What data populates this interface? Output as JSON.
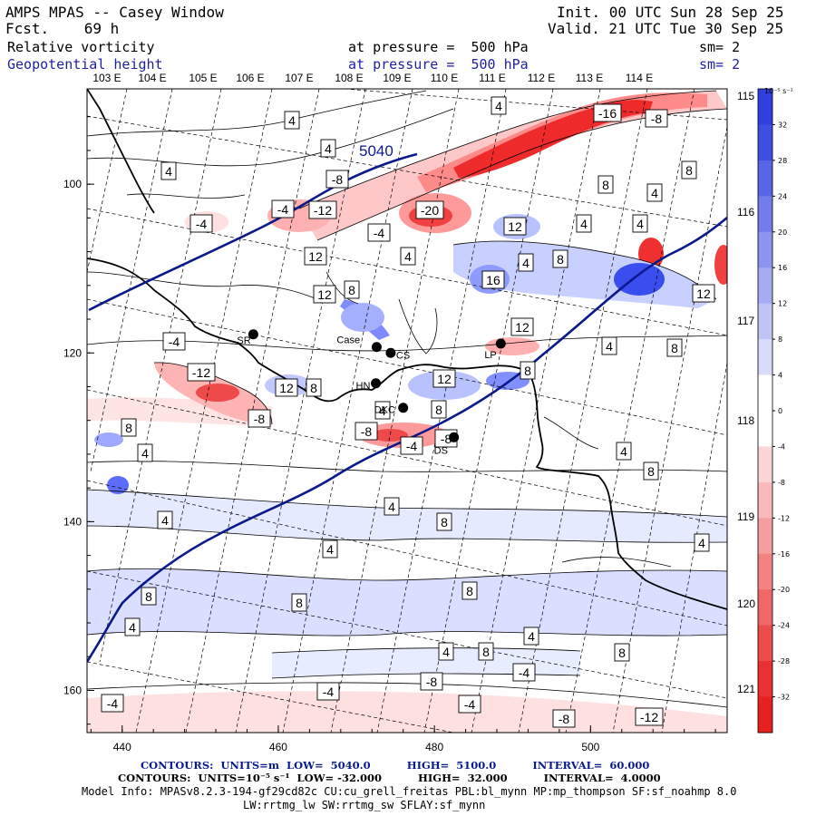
{
  "header": {
    "title": "AMPS MPAS -- Casey Window",
    "forecast": "Fcst.    69 h",
    "init": "Init. 00 UTC Sun 28 Sep 25",
    "valid": "Valid. 21 UTC Tue 30 Sep 25",
    "field1_name": "Relative vorticity",
    "field1_level": "at pressure =  500 hPa",
    "field1_sm": "sm= 2",
    "field2_name": "Geopotential height",
    "field2_level": "at pressure =  500 hPa",
    "field2_sm": "sm= 2"
  },
  "colors": {
    "height_contour": "#0a1a8c",
    "positive_fill": "#2f3fe0",
    "negative_fill": "#e82020",
    "coast": "#000000"
  },
  "axes": {
    "x_ticks": [
      "440",
      "460",
      "480",
      "500"
    ],
    "y_ticks": [
      "100",
      "120",
      "140",
      "160"
    ],
    "lon_labels": [
      "103 E",
      "104 E",
      "105 E",
      "106 E",
      "107 E",
      "108 E",
      "109 E",
      "110 E",
      "111 E",
      "112 E",
      "113 E",
      "114 E"
    ],
    "lat_labels": [
      "115 E",
      "116 E",
      "117 E",
      "118 E",
      "119 E",
      "120 E",
      "121 E"
    ]
  },
  "colorbar": {
    "unit": "10⁻⁵ s⁻¹",
    "levels": [
      "32",
      "28",
      "24",
      "20",
      "16",
      "12",
      "8",
      "4",
      "0",
      "-4",
      "-8",
      "-12",
      "-16",
      "-20",
      "-24",
      "-28",
      "-32"
    ]
  },
  "height_contour_label": "5040",
  "stations": [
    {
      "code": "SR",
      "lon_deg": 456.8,
      "lat_deg": 117.8
    },
    {
      "code": "Case",
      "lon_deg": 472.6,
      "lat_deg": 119.3
    },
    {
      "code": "CS",
      "lon_deg": 474.4,
      "lat_deg": 120.0
    },
    {
      "code": "HN",
      "lon_deg": 472.5,
      "lat_deg": 123.6
    },
    {
      "code": "DKC",
      "lon_deg": 476.0,
      "lat_deg": 126.5
    },
    {
      "code": "DS",
      "lon_deg": 482.5,
      "lat_deg": 130.0
    },
    {
      "code": "LP",
      "lon_deg": 488.5,
      "lat_deg": 118.9
    }
  ],
  "contour_labels": [
    "4",
    "-4",
    "8",
    "-8",
    "12",
    "-12",
    "16",
    "-16",
    "-20"
  ],
  "footer": {
    "line1": "CONTOURS:  UNITS=m  LOW=  5040.0          HIGH=  5100.0          INTERVAL=  60.000",
    "line2": "CONTOURS:  UNITS=10⁻⁵ s⁻¹  LOW= -32.000          HIGH=  32.000          INTERVAL=  4.0000",
    "line3": "Model Info: MPASv8.2.3-194-gf29cd82c CU:cu_grell_freitas PBL:bl_mynn MP:mp_thompson SF:sf_noahmp 8.0",
    "line4": "LW:rrtmg_lw SW:rrtmg_sw SFLAY:sf_mynn"
  }
}
